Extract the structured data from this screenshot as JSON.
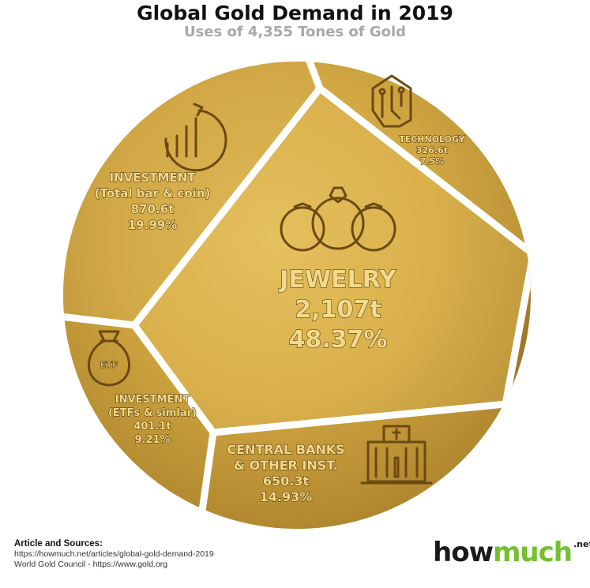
{
  "header": {
    "title": "Global Gold Demand in 2019",
    "subtitle": "Uses of 4,355 Tones of Gold"
  },
  "chart_data": {
    "type": "pie",
    "title": "Global Gold Demand in 2019",
    "subtitle": "Uses of 4,355 Tones of Gold",
    "slices": [
      {
        "name": "JEWELRY",
        "lines": [
          "JEWELRY",
          "2,107t",
          "48.37%"
        ],
        "value": 2107,
        "percent": 48.37,
        "icon": "rings-icon"
      },
      {
        "name": "TECHNOLOGY",
        "lines": [
          "TECHNOLOGY",
          "326.6t",
          "7.5%"
        ],
        "value": 326.6,
        "percent": 7.5,
        "icon": "circuit-chip-icon"
      },
      {
        "name": "CENTRAL BANKS & OTHER INST.",
        "lines": [
          "CENTRAL BANKS",
          "& OTHER INST.",
          "650.3t",
          "14.93%"
        ],
        "value": 650.3,
        "percent": 14.93,
        "icon": "bank-building-icon"
      },
      {
        "name": "INVESTMENT (ETFs & simlar)",
        "lines": [
          "INVESTMENT",
          "(ETFs & simlar)",
          "401.1t",
          "9.21%"
        ],
        "value": 401.1,
        "percent": 9.21,
        "icon": "etf-moneybag-icon"
      },
      {
        "name": "INVESTMENT (Total bar & coin)",
        "lines": [
          "INVESTMENT",
          "(Total bar & coin)",
          "870.6t",
          "19.99%"
        ],
        "value": 870.6,
        "percent": 19.99,
        "icon": "bar-chart-growth-icon"
      }
    ],
    "colors": {
      "gold_light": "#e9c45e",
      "gold_mid": "#c99d35",
      "gold_dark": "#8a6418",
      "gap": "#ffffff"
    }
  },
  "footer": {
    "sources_heading": "Article and Sources:",
    "source_1": "https://howmuch.net/articles/global-gold-demand-2019",
    "source_2": "World Gold Council - https://www.gold.org",
    "brand_how": "how",
    "brand_much": "much",
    "brand_net": ".net"
  }
}
